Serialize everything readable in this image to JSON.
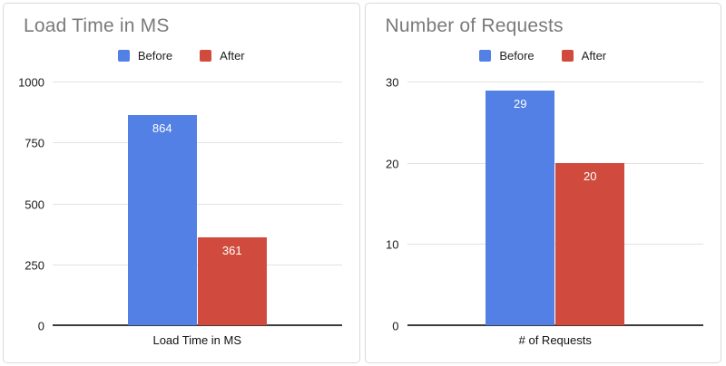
{
  "colors": {
    "series_before": "#5280e4",
    "series_after": "#d04b3d",
    "title_text": "#7a7a7a",
    "axis_text": "#1b1b1b",
    "gridline": "#e2e2e2",
    "baseline": "#3c3c3c",
    "bar_value_text": "#ffffff",
    "card_border": "#d9d9d9"
  },
  "chart_data": [
    {
      "type": "bar",
      "title": "Load Time in MS",
      "categories": [
        "Load Time in MS"
      ],
      "series": [
        {
          "name": "Before",
          "values": [
            864
          ],
          "color": "#5280e4"
        },
        {
          "name": "After",
          "values": [
            361
          ],
          "color": "#d04b3d"
        }
      ],
      "xlabel": "Load Time in MS",
      "ylabel": "",
      "ylim": [
        0,
        1000
      ],
      "yticks": [
        0,
        250,
        500,
        750,
        1000
      ],
      "legend_position": "top",
      "grid": true,
      "bar_labels": true
    },
    {
      "type": "bar",
      "title": "Number of Requests",
      "categories": [
        "# of Requests"
      ],
      "series": [
        {
          "name": "Before",
          "values": [
            29
          ],
          "color": "#5280e4"
        },
        {
          "name": "After",
          "values": [
            20
          ],
          "color": "#d04b3d"
        }
      ],
      "xlabel": "# of Requests",
      "ylabel": "",
      "ylim": [
        0,
        30
      ],
      "yticks": [
        0,
        10,
        20,
        30
      ],
      "legend_position": "top",
      "grid": true,
      "bar_labels": true
    }
  ]
}
